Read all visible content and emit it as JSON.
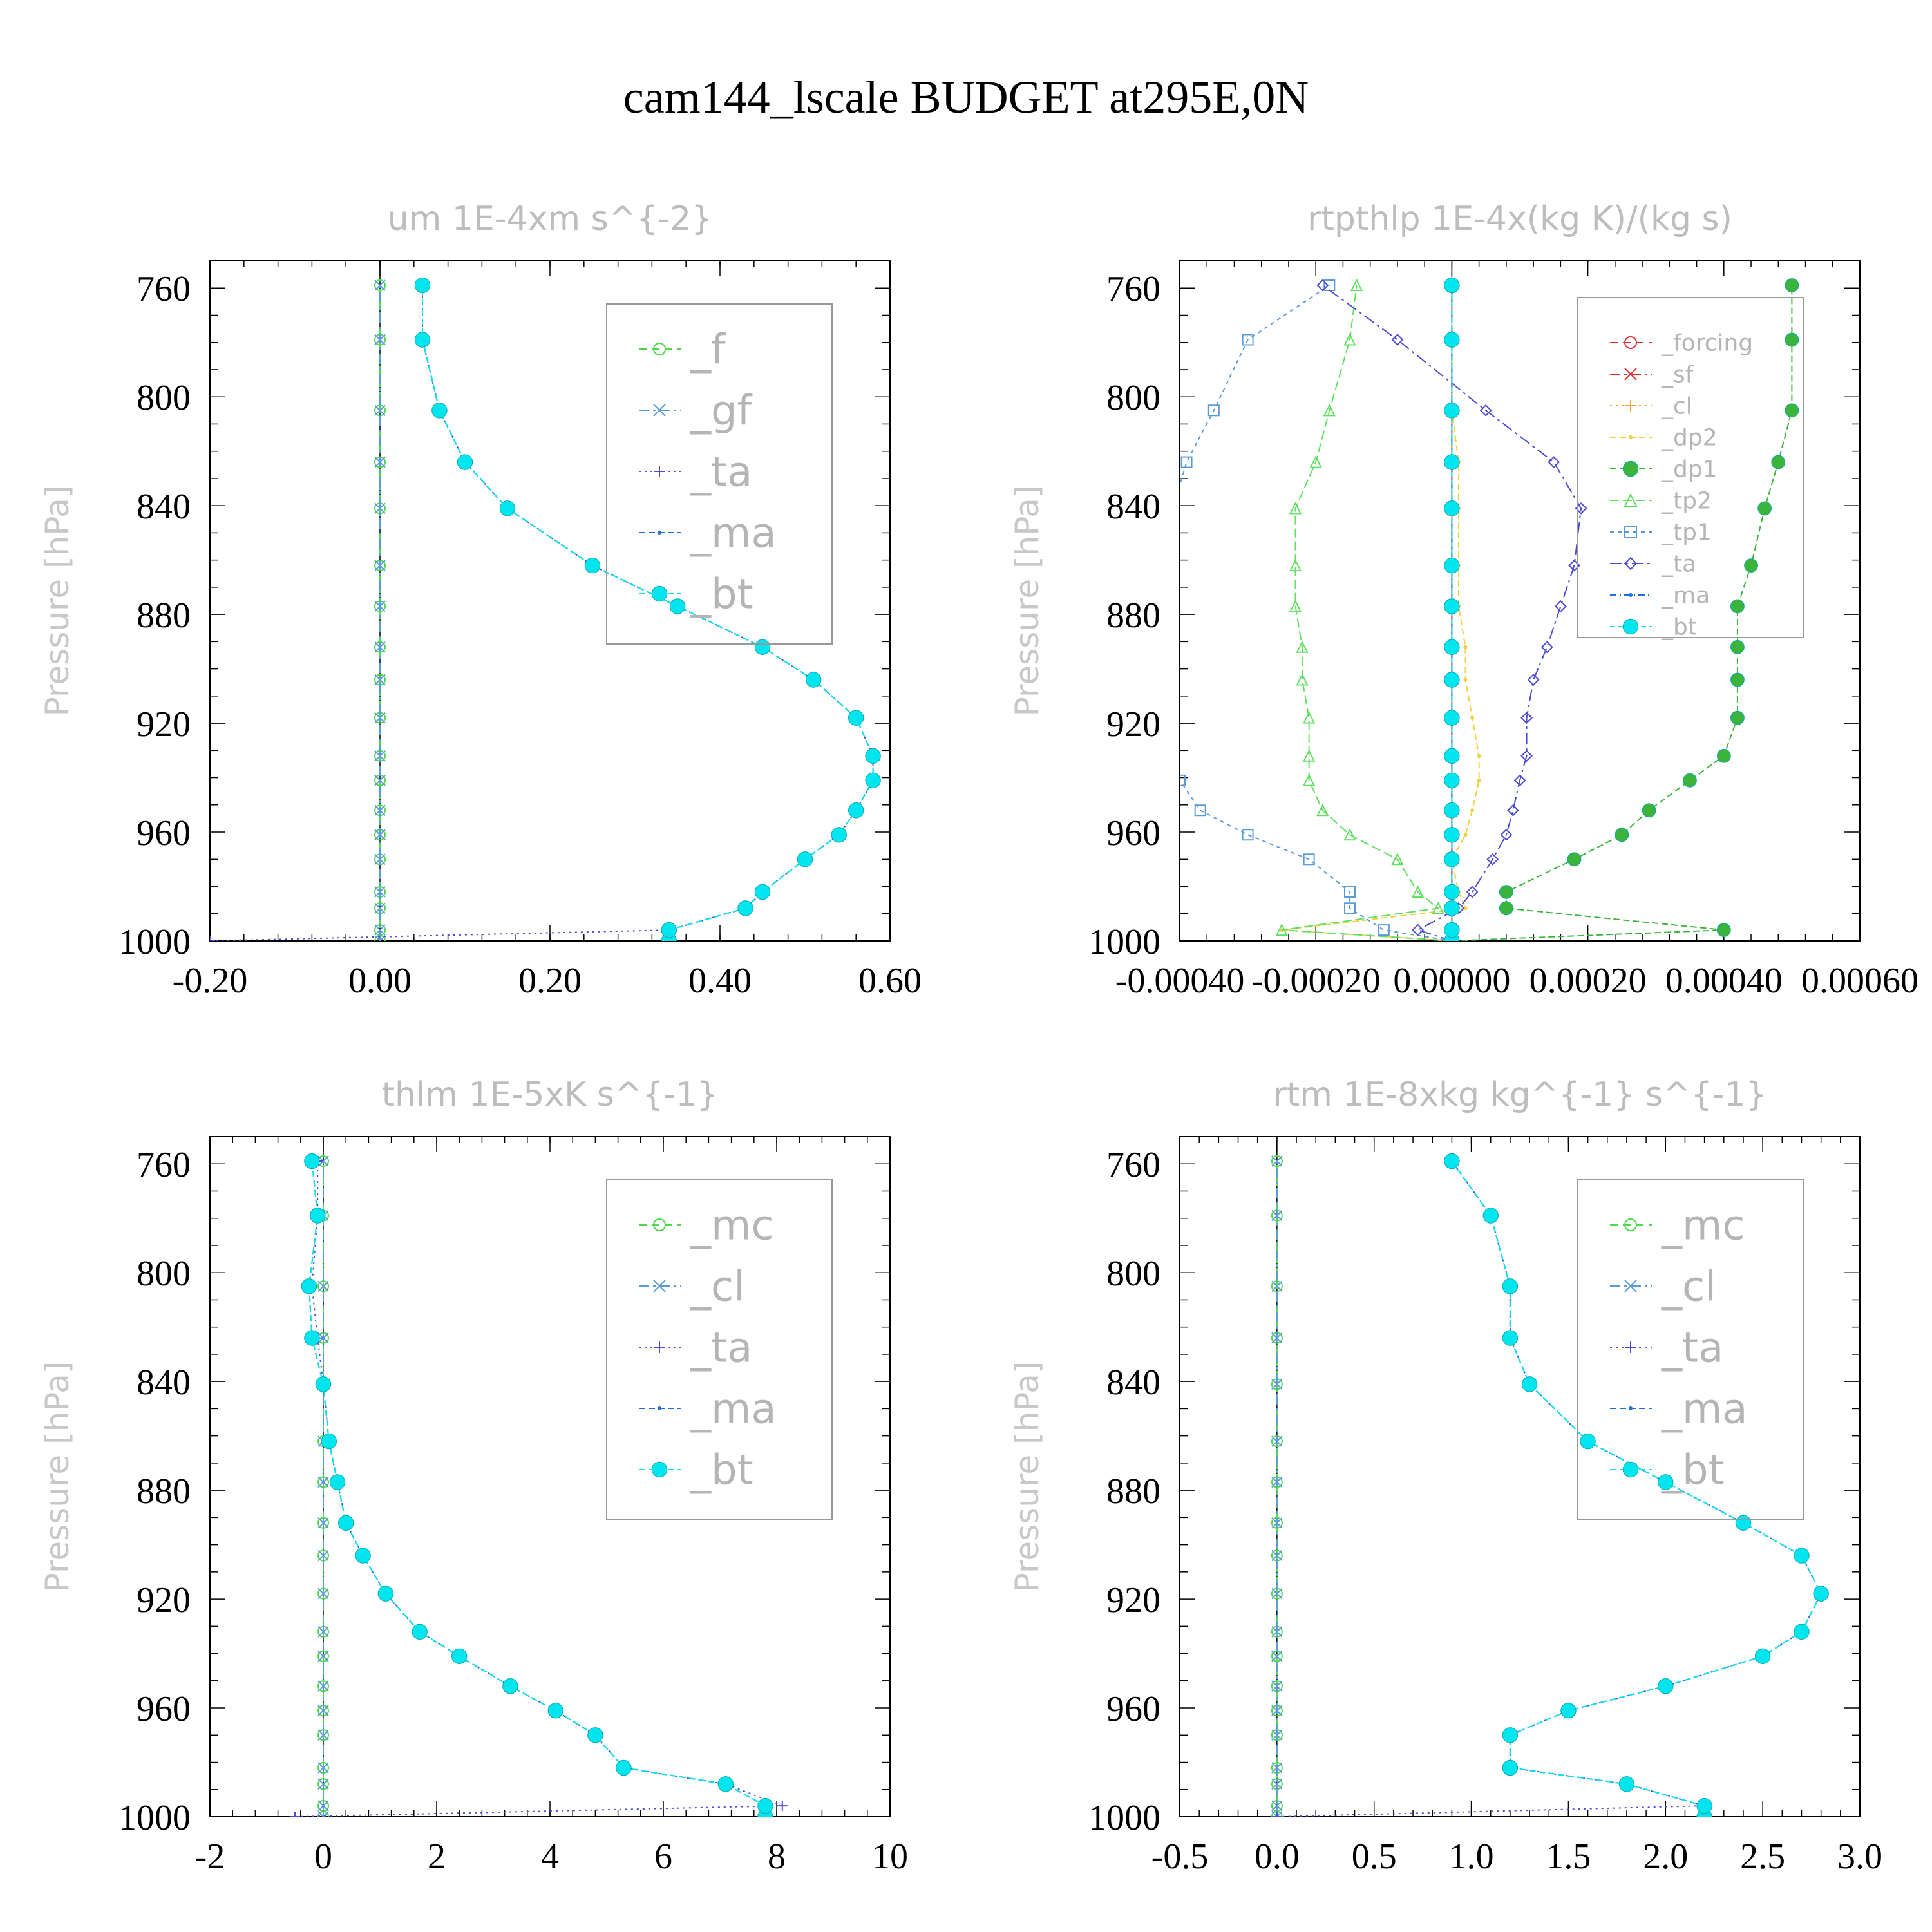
{
  "figure_title": "cam144_lscale  BUDGET at295E,0N",
  "colors": {
    "f": "#4cd94c",
    "gf": "#5b9bd5",
    "ta": "#4b4bd6",
    "ma": "#1e6fd9",
    "bt": "#00e5ee",
    "forcing": "#e03030",
    "sf": "#e03030",
    "cl_orange": "#f0a030",
    "dp2": "#f0d040",
    "dp1": "#3cb43c",
    "tp2": "#60e060",
    "tp1": "#5b9bd5",
    "mc": "#4cd94c",
    "cl": "#5b9bd5"
  },
  "chart_data": [
    {
      "type": "line",
      "title": "um   1E-4xm s^{-2}",
      "ylabel": "Pressure [hPa]",
      "ylim": [
        1000,
        750
      ],
      "xlim": [
        -0.2,
        0.6
      ],
      "y_tick_labels": [
        "760",
        "800",
        "840",
        "880",
        "920",
        "960",
        "1000"
      ],
      "x_tick_labels": [
        "-0.20",
        "0.00",
        "0.20",
        "0.40",
        "0.60"
      ],
      "pressure_levels": [
        1000,
        996,
        988,
        982,
        970,
        961,
        952,
        941,
        932,
        918,
        904,
        892,
        877,
        862,
        841,
        824,
        805,
        779,
        759
      ],
      "series": [
        {
          "name": "_f",
          "color_key": "f",
          "values": [
            0,
            0,
            0,
            0,
            0,
            0,
            0,
            0,
            0,
            0,
            0,
            0,
            0,
            0,
            0,
            0,
            0,
            0,
            0
          ]
        },
        {
          "name": "_gf",
          "color_key": "gf",
          "values": [
            0,
            0,
            0,
            0,
            0,
            0,
            0,
            0,
            0,
            0,
            0,
            0,
            0,
            0,
            0,
            0,
            0,
            0,
            0
          ]
        },
        {
          "name": "_ta",
          "color_key": "ta",
          "values": [
            -0.2,
            0.34,
            0.43,
            0.45,
            0.5,
            0.54,
            0.56,
            0.58,
            0.58,
            0.56,
            0.51,
            0.45,
            0.35,
            0.25,
            0.15,
            0.1,
            0.07,
            0.05,
            0.05
          ]
        },
        {
          "name": "_ma",
          "color_key": "ma",
          "values": [
            0.34,
            0.34,
            0.43,
            0.45,
            0.5,
            0.54,
            0.56,
            0.58,
            0.58,
            0.56,
            0.51,
            0.45,
            0.35,
            0.25,
            0.15,
            0.1,
            0.07,
            0.05,
            0.05
          ]
        },
        {
          "name": "_bt",
          "color_key": "bt",
          "values": [
            0.34,
            0.34,
            0.43,
            0.45,
            0.5,
            0.54,
            0.56,
            0.58,
            0.58,
            0.56,
            0.51,
            0.45,
            0.35,
            0.25,
            0.15,
            0.1,
            0.07,
            0.05,
            0.05
          ]
        }
      ]
    },
    {
      "type": "line",
      "title": "rtpthlp   1E-4x(kg K)/(kg s)",
      "ylabel": "Pressure [hPa]",
      "ylim": [
        1000,
        750
      ],
      "xlim": [
        -0.0004,
        0.0006
      ],
      "y_tick_labels": [
        "760",
        "800",
        "840",
        "880",
        "920",
        "960",
        "1000"
      ],
      "x_tick_labels": [
        "-0.00040",
        "-0.00020",
        "0.00000",
        "0.00020",
        "0.00040",
        "0.00060"
      ],
      "pressure_levels": [
        1000,
        996,
        988,
        982,
        970,
        961,
        952,
        941,
        932,
        918,
        904,
        892,
        877,
        862,
        841,
        824,
        805,
        779,
        759
      ],
      "series": [
        {
          "name": "_forcing",
          "color_key": "forcing",
          "values": [
            0,
            0,
            0,
            0,
            0,
            0,
            0,
            0,
            0,
            0,
            0,
            0,
            0,
            0,
            0,
            0,
            0,
            0,
            0
          ]
        },
        {
          "name": "_sf",
          "color_key": "sf",
          "values": [
            0,
            0,
            0,
            0,
            0,
            0,
            0,
            0,
            0,
            0,
            0,
            0,
            0,
            0,
            0,
            0,
            0,
            0,
            0
          ]
        },
        {
          "name": "_cl",
          "color_key": "cl_orange",
          "values": [
            0,
            0,
            0,
            0,
            0,
            0,
            0,
            0,
            0,
            0,
            0,
            0,
            0,
            0,
            0,
            0,
            0,
            0,
            0
          ]
        },
        {
          "name": "_dp2",
          "color_key": "dp2",
          "values": [
            0,
            -0.00025,
            2e-05,
            1e-05,
            0,
            2e-05,
            3e-05,
            4e-05,
            4e-05,
            3e-05,
            2e-05,
            2e-05,
            1e-05,
            1e-05,
            1e-05,
            1e-05,
            0,
            0,
            0
          ]
        },
        {
          "name": "_dp1",
          "color_key": "dp1",
          "values": [
            0,
            0.0004,
            8e-05,
            8e-05,
            0.00018,
            0.00025,
            0.00029,
            0.00035,
            0.0004,
            0.00042,
            0.00042,
            0.00042,
            0.00042,
            0.00044,
            0.00046,
            0.00048,
            0.0005,
            0.0005,
            0.0005
          ]
        },
        {
          "name": "_tp2",
          "color_key": "tp2",
          "values": [
            0,
            -0.00025,
            -2e-05,
            -5e-05,
            -8e-05,
            -0.00015,
            -0.00019,
            -0.00021,
            -0.00021,
            -0.00021,
            -0.00022,
            -0.00022,
            -0.00023,
            -0.00023,
            -0.00023,
            -0.0002,
            -0.00018,
            -0.00015,
            -0.00014
          ]
        },
        {
          "name": "_tp1",
          "color_key": "tp1",
          "values": [
            0,
            -0.0001,
            -0.00015,
            -0.00015,
            -0.00021,
            -0.0003,
            -0.00037,
            -0.0004,
            -0.00041,
            -0.00041,
            -0.00041,
            -0.00041,
            -0.00041,
            -0.00041,
            -0.00041,
            -0.00039,
            -0.00035,
            -0.0003,
            -0.00018
          ]
        },
        {
          "name": "_ta",
          "color_key": "ta",
          "values": [
            0,
            -5e-05,
            1e-05,
            3e-05,
            6e-05,
            8e-05,
            9e-05,
            0.0001,
            0.00011,
            0.00011,
            0.00012,
            0.00014,
            0.00016,
            0.00018,
            0.00019,
            0.00015,
            5e-05,
            -8e-05,
            -0.00019
          ]
        },
        {
          "name": "_ma",
          "color_key": "ma",
          "values": [
            0,
            0,
            0,
            0,
            0,
            0,
            0,
            0,
            0,
            0,
            0,
            0,
            0,
            0,
            0,
            0,
            0,
            0,
            0
          ]
        },
        {
          "name": "_bt",
          "color_key": "bt",
          "values": [
            0,
            0,
            0,
            0,
            0,
            0,
            0,
            0,
            0,
            0,
            0,
            0,
            0,
            0,
            0,
            0,
            0,
            0,
            0
          ]
        }
      ]
    },
    {
      "type": "line",
      "title": "thlm   1E-5xK s^{-1}",
      "ylabel": "Pressure [hPa]",
      "ylim": [
        1000,
        750
      ],
      "xlim": [
        -2,
        10
      ],
      "y_tick_labels": [
        "760",
        "800",
        "840",
        "880",
        "920",
        "960",
        "1000"
      ],
      "x_tick_labels": [
        "-2",
        "0",
        "2",
        "4",
        "6",
        "8",
        "10"
      ],
      "pressure_levels": [
        1000,
        996,
        988,
        982,
        970,
        961,
        952,
        941,
        932,
        918,
        904,
        892,
        877,
        862,
        841,
        824,
        805,
        779,
        759
      ],
      "series": [
        {
          "name": "_mc",
          "color_key": "mc",
          "values": [
            0,
            0,
            0,
            0,
            0,
            0,
            0,
            0,
            0,
            0,
            0,
            0,
            0,
            0,
            0,
            0,
            0,
            0,
            0
          ]
        },
        {
          "name": "_cl",
          "color_key": "cl",
          "values": [
            0,
            0,
            0,
            0,
            0,
            0,
            0,
            0,
            0,
            0,
            0,
            0,
            0,
            0,
            0,
            0,
            0,
            0,
            0
          ]
        },
        {
          "name": "_ta",
          "color_key": "ta",
          "values": [
            -0.5,
            8.1,
            7.1,
            5.3,
            4.8,
            4.1,
            3.3,
            2.4,
            1.7,
            1.1,
            0.7,
            0.4,
            0.25,
            0.1,
            0,
            -0.1,
            -0.2,
            -0.1,
            -0.1
          ]
        },
        {
          "name": "_ma",
          "color_key": "ma",
          "values": [
            7.8,
            7.8,
            7.1,
            5.3,
            4.8,
            4.1,
            3.3,
            2.4,
            1.7,
            1.1,
            0.7,
            0.4,
            0.25,
            0.1,
            0,
            -0.2,
            -0.25,
            -0.1,
            -0.2
          ]
        },
        {
          "name": "_bt",
          "color_key": "bt",
          "values": [
            7.8,
            7.8,
            7.1,
            5.3,
            4.8,
            4.1,
            3.3,
            2.4,
            1.7,
            1.1,
            0.7,
            0.4,
            0.25,
            0.1,
            0,
            -0.2,
            -0.25,
            -0.1,
            -0.2
          ]
        }
      ]
    },
    {
      "type": "line",
      "title": "rtm   1E-8xkg kg^{-1} s^{-1}",
      "ylabel": "Pressure [hPa]",
      "ylim": [
        1000,
        750
      ],
      "xlim": [
        -0.5,
        3.0
      ],
      "y_tick_labels": [
        "760",
        "800",
        "840",
        "880",
        "920",
        "960",
        "1000"
      ],
      "x_tick_labels": [
        "-0.5",
        "0.0",
        "0.5",
        "1.0",
        "1.5",
        "2.0",
        "2.5",
        "3.0"
      ],
      "pressure_levels": [
        1000,
        996,
        988,
        982,
        970,
        961,
        952,
        941,
        932,
        918,
        904,
        892,
        877,
        862,
        841,
        824,
        805,
        779,
        759
      ],
      "series": [
        {
          "name": "_mc",
          "color_key": "mc",
          "values": [
            0,
            0,
            0,
            0,
            0,
            0,
            0,
            0,
            0,
            0,
            0,
            0,
            0,
            0,
            0,
            0,
            0,
            0,
            0
          ]
        },
        {
          "name": "_cl",
          "color_key": "cl",
          "values": [
            0,
            0,
            0,
            0,
            0,
            0,
            0,
            0,
            0,
            0,
            0,
            0,
            0,
            0,
            0,
            0,
            0,
            0,
            0
          ]
        },
        {
          "name": "_ta",
          "color_key": "ta",
          "values": [
            0,
            2.2,
            1.8,
            1.2,
            1.2,
            1.5,
            2.0,
            2.5,
            2.7,
            2.8,
            2.7,
            2.4,
            2.0,
            1.6,
            1.3,
            1.2,
            1.2,
            1.1,
            0.9
          ]
        },
        {
          "name": "_ma",
          "color_key": "ma",
          "values": [
            2.2,
            2.2,
            1.8,
            1.2,
            1.2,
            1.5,
            2.0,
            2.5,
            2.7,
            2.8,
            2.7,
            2.4,
            2.0,
            1.6,
            1.3,
            1.2,
            1.2,
            1.1,
            0.9
          ]
        },
        {
          "name": "_bt",
          "color_key": "bt",
          "values": [
            2.2,
            2.2,
            1.8,
            1.2,
            1.2,
            1.5,
            2.0,
            2.5,
            2.7,
            2.8,
            2.7,
            2.4,
            2.0,
            1.6,
            1.3,
            1.2,
            1.2,
            1.1,
            0.9
          ]
        }
      ]
    }
  ]
}
